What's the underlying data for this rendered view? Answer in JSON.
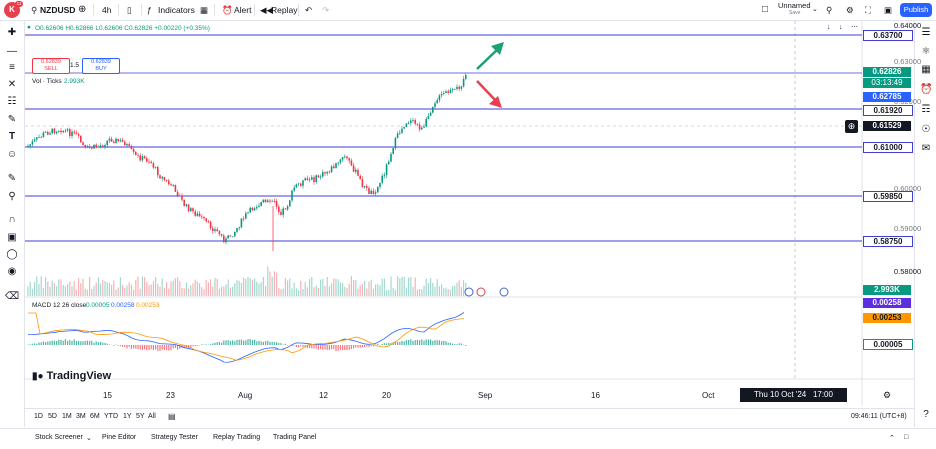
{
  "header": {
    "avatar_initial": "K",
    "avatar_badge": "11",
    "symbol": "NZDUSD",
    "interval": "4h",
    "indicators_label": "Indicators",
    "alert_label": "Alert",
    "replay_label": "Replay",
    "layout_name": "Unnamed",
    "layout_status": "Save",
    "publish_label": "Publish"
  },
  "legend": {
    "ohlc": "O0.62606 H0.62866 L0.62606 C0.62826 +0.00220 (+0.35%)",
    "sell_price": "0.62839",
    "sell_label": "SELL",
    "spread": "1.5",
    "buy_price": "0.62839",
    "buy_label": "BUY",
    "vol": "Vol · Ticks",
    "vol_value": "2.993K",
    "macd": "MACD 12 26 close",
    "macd_v1": "0.00005",
    "macd_v2": "0.00258",
    "macd_v3": "0.00253"
  },
  "price_axis": {
    "ticks": [
      "0.64000",
      "0.62000",
      "0.60000",
      "0.58000"
    ],
    "partial_ticks": [
      "0.63000",
      "0.59000"
    ],
    "level_labels": [
      "0.63700",
      "0.61920",
      "0.61000",
      "0.59850",
      "0.58750"
    ],
    "current_price": "0.62826",
    "countdown": "03:13:49",
    "high_label": "0.62785",
    "crosshair_price": "0.61529",
    "vol_label": "2.993K",
    "macd_label1": "0.00258",
    "macd_label2": "0.00253",
    "macd_label3": "0.00005"
  },
  "time_axis": {
    "ticks": [
      "15",
      "23",
      "Aug",
      "12",
      "20",
      "Sep",
      "16",
      "Oct"
    ],
    "crosshair_date": "Thu 10 Oct '24",
    "crosshair_time": "17:00"
  },
  "ranges": [
    "1D",
    "5D",
    "1M",
    "3M",
    "6M",
    "YTD",
    "1Y",
    "5Y",
    "All"
  ],
  "clock": "09:46:11 (UTC+8)",
  "panels": [
    "Stock Screener",
    "Pine Editor",
    "Strategy Tester",
    "Replay Trading",
    "Trading Panel"
  ],
  "brand": "TradingView",
  "colors": {
    "level_line": "#3f3fd6",
    "up": "#089981",
    "down": "#f23645",
    "accent": "#2962ff",
    "macd_line": "#2962ff",
    "signal_line": "#ff9800"
  }
}
